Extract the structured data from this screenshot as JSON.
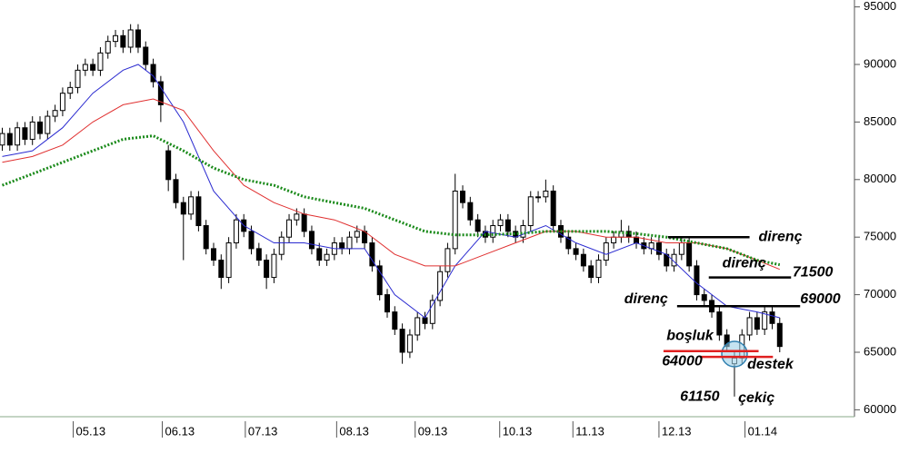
{
  "chart_data": {
    "type": "candlestick",
    "open": [
      83000,
      84000,
      83000,
      84500,
      83500,
      85000,
      84000,
      85500,
      86000,
      87500,
      88000,
      89500,
      90000,
      89500,
      91000,
      92000,
      92500,
      91500,
      93000,
      91500,
      90000,
      88500,
      82500,
      80000,
      78000,
      77000,
      78500,
      76000,
      74000,
      73000,
      71500,
      74500,
      76500,
      75500,
      74000,
      73000,
      71500,
      73500,
      75000,
      76500,
      77000,
      75500,
      74000,
      73000,
      73500,
      74500,
      74000,
      75000,
      75500,
      74500,
      72500,
      70000,
      68500,
      67000,
      65000,
      66500,
      68000,
      67500,
      69500,
      72000,
      74000,
      79000,
      78000,
      76500,
      75500,
      75000,
      76000,
      76500,
      75500,
      75000,
      76000,
      78500,
      78500,
      79000,
      76000,
      75000,
      74000,
      73500,
      72500,
      71500,
      73000,
      74500,
      75000,
      75500,
      75000,
      74500,
      74000,
      74500,
      73500,
      72500,
      73500,
      74500,
      72500,
      70000,
      69500,
      68500,
      66500,
      64000,
      64500,
      66500,
      68000,
      67000,
      68500,
      67500
    ],
    "high": [
      84500,
      84500,
      85000,
      85000,
      85500,
      85500,
      86000,
      86500,
      88000,
      88500,
      90000,
      90500,
      90500,
      91500,
      92500,
      93000,
      93000,
      93500,
      93500,
      92000,
      90500,
      89000,
      83000,
      80500,
      78500,
      79000,
      79000,
      76500,
      74500,
      73500,
      75000,
      77000,
      77000,
      76000,
      74500,
      73500,
      74000,
      75500,
      77000,
      77500,
      77500,
      76000,
      74500,
      74000,
      75000,
      75000,
      75500,
      76000,
      76000,
      75000,
      73000,
      70500,
      69000,
      67500,
      67000,
      68500,
      68500,
      70000,
      72500,
      74500,
      80500,
      79500,
      78500,
      77000,
      76000,
      76500,
      77000,
      77000,
      76000,
      76500,
      79000,
      79000,
      80000,
      79500,
      76500,
      75500,
      74500,
      74000,
      73000,
      73500,
      75000,
      75500,
      76500,
      76000,
      75500,
      75000,
      75000,
      75000,
      74000,
      74000,
      75000,
      75000,
      73000,
      70500,
      70000,
      69000,
      67000,
      65000,
      67000,
      68500,
      68500,
      69000,
      69000,
      68000
    ],
    "low": [
      82500,
      82500,
      82500,
      83000,
      83000,
      83500,
      83500,
      85000,
      85500,
      87000,
      87500,
      89000,
      89000,
      89000,
      90500,
      91500,
      91000,
      91000,
      91000,
      89500,
      88000,
      85000,
      79000,
      77500,
      73000,
      76500,
      75500,
      73500,
      72500,
      70500,
      71000,
      74000,
      75000,
      73500,
      72500,
      70500,
      71000,
      73000,
      74500,
      76000,
      75000,
      73500,
      72500,
      72500,
      73000,
      73500,
      73500,
      74500,
      74000,
      72000,
      69500,
      68000,
      66500,
      64000,
      64500,
      66000,
      67000,
      67000,
      69000,
      71500,
      73500,
      77500,
      76000,
      75000,
      74500,
      74500,
      75500,
      75000,
      74500,
      74500,
      75500,
      78000,
      78000,
      75500,
      74500,
      73500,
      73000,
      72000,
      71000,
      71000,
      72500,
      74000,
      74500,
      74500,
      74000,
      73500,
      73500,
      73000,
      72000,
      72000,
      73000,
      72000,
      69500,
      69000,
      68000,
      66000,
      65000,
      61150,
      64000,
      66000,
      66500,
      66500,
      67000,
      65000
    ],
    "close": [
      84000,
      83000,
      84500,
      83500,
      85000,
      84000,
      85500,
      86000,
      87500,
      88000,
      89500,
      90000,
      89500,
      91000,
      92000,
      92500,
      91500,
      93000,
      91500,
      90000,
      88500,
      86500,
      80000,
      78000,
      77000,
      78500,
      76000,
      74000,
      73000,
      71500,
      74500,
      76500,
      75500,
      74000,
      73000,
      71500,
      73500,
      75000,
      76500,
      77000,
      75500,
      74000,
      73000,
      73500,
      74500,
      74000,
      75000,
      75500,
      74500,
      72500,
      70000,
      68500,
      67000,
      65000,
      66500,
      68000,
      67500,
      69500,
      72000,
      74000,
      79000,
      78000,
      76500,
      75500,
      75000,
      76000,
      76500,
      75500,
      75000,
      76000,
      78500,
      78500,
      79000,
      76000,
      75000,
      74000,
      73500,
      72500,
      71500,
      73000,
      74500,
      75000,
      75500,
      75000,
      74500,
      74000,
      74500,
      73500,
      72500,
      73500,
      74500,
      72500,
      70000,
      69500,
      68500,
      66500,
      65500,
      64500,
      66500,
      68000,
      67000,
      68500,
      67500,
      65500
    ],
    "up_color": "#ffffff",
    "down_color": "#000000",
    "lines": [
      {
        "color": "#2b2bd0",
        "style": "solid",
        "x": [
          0,
          4,
          8,
          12,
          16,
          18,
          20,
          24,
          28,
          32,
          36,
          40,
          44,
          48,
          52,
          56,
          60,
          64,
          68,
          72,
          76,
          80,
          84,
          88,
          92,
          96,
          100,
          103
        ],
        "values": [
          82000,
          82500,
          84500,
          87500,
          89500,
          90000,
          89000,
          85000,
          79000,
          76000,
          74500,
          74500,
          74000,
          74000,
          70000,
          68000,
          72500,
          75500,
          75000,
          76000,
          74500,
          73500,
          74500,
          73500,
          71000,
          69000,
          68500,
          68000
        ]
      },
      {
        "color": "#e03030",
        "style": "solid",
        "x": [
          0,
          4,
          8,
          12,
          16,
          20,
          24,
          28,
          32,
          36,
          40,
          44,
          48,
          52,
          56,
          60,
          64,
          68,
          72,
          76,
          80,
          84,
          88,
          92,
          96,
          100,
          103
        ],
        "values": [
          81500,
          82000,
          83000,
          85000,
          86500,
          87000,
          86000,
          82500,
          79500,
          78000,
          77000,
          76500,
          75500,
          73500,
          72500,
          72500,
          73500,
          74500,
          75500,
          75500,
          75000,
          75000,
          74500,
          74500,
          74000,
          73000,
          72200
        ]
      },
      {
        "color": "#1a8a1a",
        "style": "dotted",
        "x": [
          0,
          4,
          8,
          12,
          16,
          20,
          24,
          28,
          32,
          36,
          40,
          44,
          48,
          52,
          56,
          60,
          64,
          68,
          72,
          76,
          80,
          84,
          88,
          92,
          96,
          100,
          103
        ],
        "values": [
          79500,
          80500,
          81500,
          82500,
          83500,
          83800,
          82500,
          81000,
          80000,
          79500,
          78500,
          78000,
          77500,
          76500,
          75500,
          75200,
          75200,
          75300,
          75500,
          75500,
          75500,
          75300,
          75000,
          74500,
          74000,
          73000,
          72600
        ]
      }
    ],
    "levels": [
      {
        "color": "#000000",
        "y": 75000,
        "x": [
          88.2,
          99.0
        ]
      },
      {
        "color": "#000000",
        "y": 71500,
        "x": [
          93.6,
          104.5
        ]
      },
      {
        "color": "#000000",
        "y": 69000,
        "x": [
          89.4,
          105.7
        ]
      },
      {
        "color": "#e02020",
        "y": 65100,
        "x": [
          87.6,
          100.2
        ]
      },
      {
        "color": "#e02020",
        "y": 64600,
        "x": [
          92.4,
          102.1
        ]
      }
    ],
    "annotations": [
      {
        "text": "direnç",
        "x": 100.2,
        "y": 75000,
        "color": "#000000"
      },
      {
        "text": "direnç",
        "x": 95.4,
        "y": 72700,
        "color": "#000000"
      },
      {
        "text": "71500",
        "x": 104.7,
        "y": 71900,
        "color": "#000000"
      },
      {
        "text": "direnç",
        "x": 82.4,
        "y": 69600,
        "color": "#000000"
      },
      {
        "text": "69000",
        "x": 105.7,
        "y": 69600,
        "color": "#000000"
      },
      {
        "text": "boşluk",
        "x": 88,
        "y": 66400,
        "color": "#000000"
      },
      {
        "text": "64000",
        "x": 87.4,
        "y": 64200,
        "color": "#000000"
      },
      {
        "text": "destek",
        "x": 98.7,
        "y": 63900,
        "color": "#000000"
      },
      {
        "text": "61150",
        "x": 89.8,
        "y": 61100,
        "color": "#000000"
      },
      {
        "text": "çekiç",
        "x": 97.5,
        "y": 61000,
        "color": "#e02020"
      }
    ],
    "xlim": [
      -0.3,
      112.9
    ],
    "xticks": [
      {
        "value": 9.4,
        "label": "05.13"
      },
      {
        "value": 21.2,
        "label": "06.13"
      },
      {
        "value": 32.2,
        "label": "07.13"
      },
      {
        "value": 44.3,
        "label": "08.13"
      },
      {
        "value": 54.7,
        "label": "09.13"
      },
      {
        "value": 65.9,
        "label": "10.13"
      },
      {
        "value": 75.6,
        "label": "11.13"
      },
      {
        "value": 87.0,
        "label": "12.13"
      },
      {
        "value": 98.4,
        "label": "01.14"
      }
    ],
    "ylim": [
      59400,
      95600
    ],
    "yticks": [
      60000,
      65000,
      70000,
      75000,
      80000,
      85000,
      90000,
      95000
    ]
  }
}
